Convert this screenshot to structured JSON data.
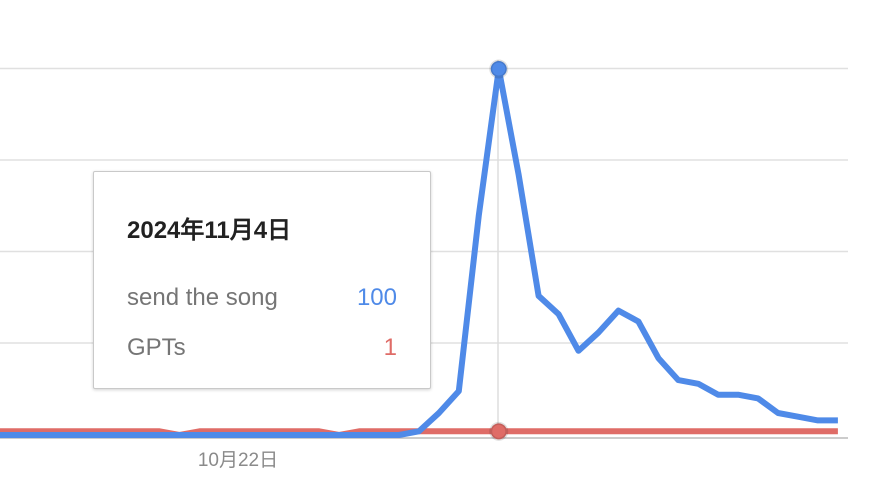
{
  "chart_data": {
    "type": "line",
    "x_tick_labels": [
      "10月22日"
    ],
    "ylim": [
      0,
      100
    ],
    "grid": true,
    "series": [
      {
        "name": "send the song",
        "color": "#4f8ae8",
        "values": [
          0,
          0,
          0,
          0,
          0,
          0,
          0,
          0,
          0,
          0,
          0,
          0,
          0,
          0,
          0,
          0,
          0,
          0,
          0,
          0,
          0,
          1,
          6,
          12,
          60,
          100,
          71,
          38,
          33,
          23,
          28,
          34,
          31,
          21,
          15,
          14,
          11,
          11,
          10,
          6,
          5,
          4,
          4
        ]
      },
      {
        "name": "GPTs",
        "color": "#df6c67",
        "values": [
          1,
          1,
          1,
          1,
          1,
          1,
          1,
          1,
          1,
          0,
          1,
          1,
          1,
          1,
          1,
          1,
          1,
          0,
          1,
          1,
          1,
          1,
          1,
          1,
          1,
          1,
          1,
          1,
          1,
          1,
          1,
          1,
          1,
          1,
          1,
          1,
          1,
          1,
          1,
          1,
          1,
          1,
          1
        ]
      }
    ]
  },
  "tooltip": {
    "date": "2024年11月4日",
    "rows": [
      {
        "name": "send the song",
        "value": "100",
        "color": "#4f8ae8"
      },
      {
        "name": "GPTs",
        "value": "1",
        "color": "#df6c67"
      }
    ]
  }
}
